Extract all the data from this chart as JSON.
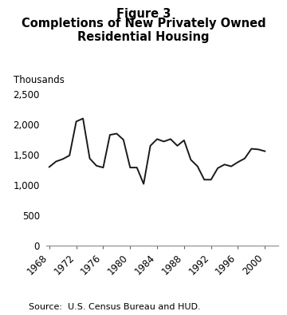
{
  "title_line1": "Figure 3",
  "title_line2": "Completions of New Privately Owned\nResidential Housing",
  "ylabel": "Thousands",
  "source": "Source:  U.S. Census Bureau and HUD.",
  "years": [
    1968,
    1969,
    1970,
    1971,
    1972,
    1973,
    1974,
    1975,
    1976,
    1977,
    1978,
    1979,
    1980,
    1981,
    1982,
    1983,
    1984,
    1985,
    1986,
    1987,
    1988,
    1989,
    1990,
    1991,
    1992,
    1993,
    1994,
    1995,
    1996,
    1997,
    1998,
    1999,
    2000
  ],
  "values": [
    1300,
    1390,
    1430,
    1490,
    2050,
    2100,
    1440,
    1320,
    1290,
    1830,
    1850,
    1750,
    1290,
    1290,
    1020,
    1650,
    1760,
    1720,
    1760,
    1650,
    1740,
    1420,
    1310,
    1090,
    1090,
    1280,
    1340,
    1310,
    1380,
    1440,
    1600,
    1590,
    1560
  ],
  "xlim": [
    1967.5,
    2002
  ],
  "ylim": [
    0,
    2600
  ],
  "yticks": [
    0,
    500,
    1000,
    1500,
    2000,
    2500
  ],
  "xticks": [
    1968,
    1972,
    1976,
    1980,
    1984,
    1988,
    1992,
    1996,
    2000
  ],
  "line_color": "#1a1a1a",
  "line_width": 1.4,
  "background_color": "#ffffff",
  "title_fontsize": 10.5,
  "tick_fontsize": 8.5,
  "ylabel_fontsize": 8.5,
  "source_fontsize": 8
}
